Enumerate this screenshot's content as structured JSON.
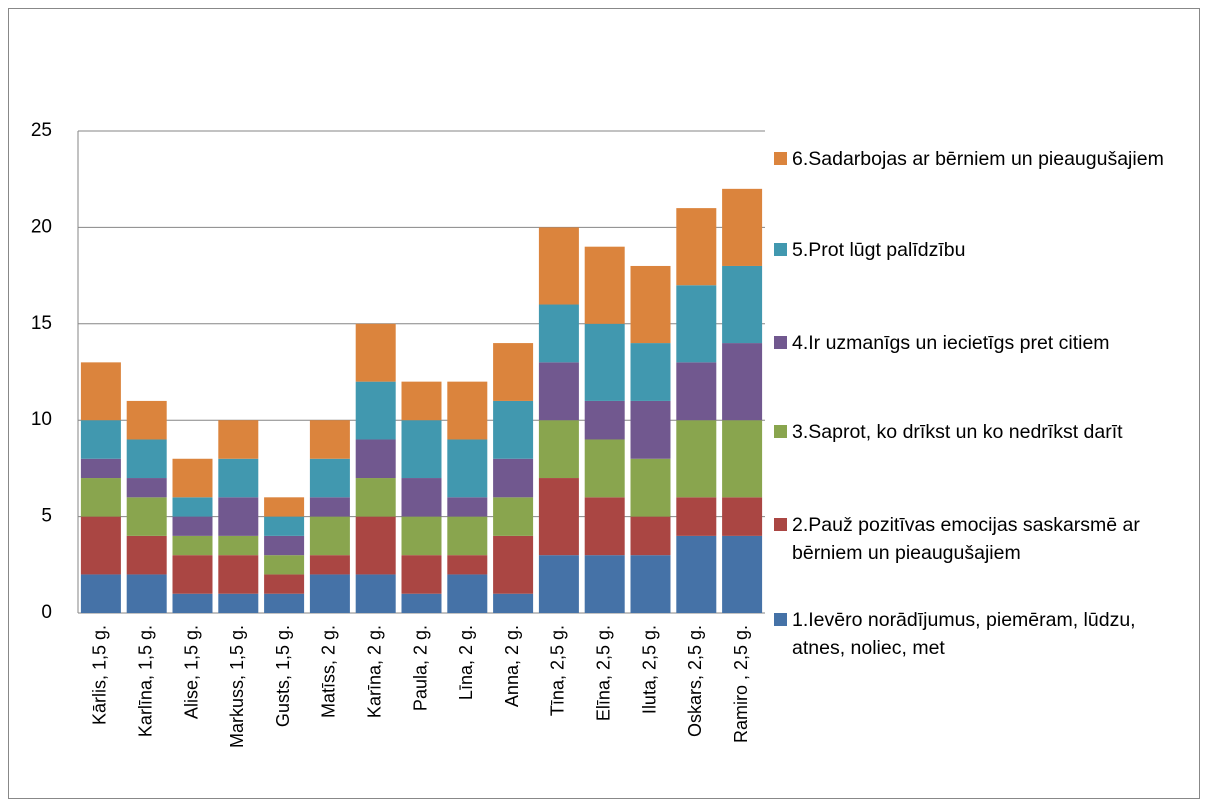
{
  "chart_data": {
    "type": "stacked_bar",
    "categories": [
      "Kārlis, 1,5 g.",
      "Karlīna, 1,5 g.",
      "Alise, 1,5 g.",
      "Markuss, 1,5 g.",
      "Gusts, 1,5 g.",
      "Matīss, 2 g.",
      "Karīna, 2 g.",
      "Paula, 2 g.",
      "Līna, 2 g.",
      "Anna, 2 g.",
      "Tīna, 2,5 g.",
      "Elīna, 2,5 g.",
      "Iluta, 2,5 g.",
      "Oskars, 2,5 g.",
      "Ramiro , 2,5 g."
    ],
    "series": [
      {
        "name": "1.Ievēro norādījumus, piemēram, lūdzu, atnes, noliec, met",
        "color": "#4572a7",
        "values": [
          2,
          2,
          1,
          1,
          1,
          2,
          2,
          1,
          2,
          1,
          3,
          3,
          3,
          4,
          4
        ]
      },
      {
        "name": "2.Pauž pozitīvas emocijas saskarsmē ar bērniem un pieaugušajiem",
        "color": "#aa4643",
        "values": [
          3,
          2,
          2,
          2,
          1,
          1,
          3,
          2,
          1,
          3,
          4,
          3,
          2,
          2,
          2
        ]
      },
      {
        "name": "3.Saprot, ko drīkst un ko nedrīkst darīt",
        "color": "#89a54e",
        "values": [
          2,
          2,
          1,
          1,
          1,
          2,
          2,
          2,
          2,
          2,
          3,
          3,
          3,
          4,
          4
        ]
      },
      {
        "name": "4.Ir uzmanīgs un iecietīgs pret citiem",
        "color": "#71588f",
        "values": [
          1,
          1,
          1,
          2,
          1,
          1,
          2,
          2,
          1,
          2,
          3,
          2,
          3,
          3,
          4
        ]
      },
      {
        "name": "5.Prot lūgt palīdzību",
        "color": "#4198af",
        "values": [
          2,
          2,
          1,
          2,
          1,
          2,
          3,
          3,
          3,
          3,
          3,
          4,
          3,
          4,
          4
        ]
      },
      {
        "name": "6.Sadarbojas ar bērniem un pieaugušajiem",
        "color": "#db843d",
        "values": [
          3,
          2,
          2,
          2,
          1,
          2,
          3,
          2,
          3,
          3,
          4,
          4,
          4,
          4,
          4
        ]
      }
    ],
    "ylim": [
      0,
      25
    ],
    "yticks": [
      0,
      5,
      10,
      15,
      20,
      25
    ],
    "grid": true
  }
}
